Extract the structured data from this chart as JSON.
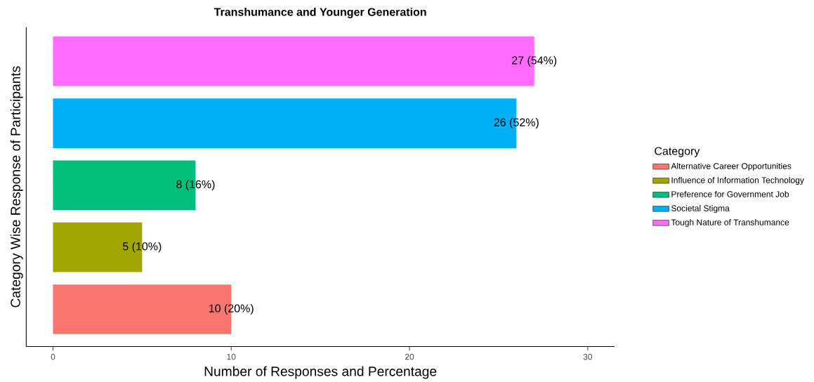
{
  "chart_data": {
    "type": "bar",
    "orientation": "horizontal",
    "title": "Transhumance and Younger Generation",
    "xlabel": "Number of Responses and Percentage",
    "ylabel": "Category Wise Response of Participants",
    "legend_title": "Category",
    "legend": "right",
    "tick_labels": "x",
    "grid": false,
    "categories": [
      null,
      null,
      null,
      null,
      null
    ],
    "series": [
      {
        "name": "Alternative Career Opportunities",
        "color": "#f8766d",
        "values": [
          null,
          null,
          null,
          null,
          10
        ],
        "value_labels": [
          null,
          null,
          null,
          null,
          "10 (20%)"
        ]
      },
      {
        "name": "Influence of Information Technology",
        "color": "#a3a500",
        "values": [
          null,
          null,
          null,
          5,
          null
        ],
        "value_labels": [
          null,
          null,
          null,
          "5 (10%)",
          null
        ]
      },
      {
        "name": "Preference for Government Job",
        "color": "#00bf7d",
        "values": [
          null,
          null,
          8,
          null,
          null
        ],
        "value_labels": [
          null,
          null,
          "8 (16%)",
          null,
          null
        ]
      },
      {
        "name": "Societal Stigma",
        "color": "#00b0f6",
        "values": [
          null,
          26,
          null,
          null,
          null
        ],
        "value_labels": [
          null,
          "26 (52%)",
          null,
          null,
          null
        ]
      },
      {
        "name": "Tough Nature of Transhumance",
        "color": "#ff6cff",
        "values": [
          27,
          null,
          null,
          null,
          null
        ],
        "value_labels": [
          "27 (54%)",
          null,
          null,
          null,
          null
        ]
      }
    ],
    "xlim": [
      -1.5,
      31.5
    ],
    "xticks": [
      0,
      10,
      20,
      30
    ]
  }
}
